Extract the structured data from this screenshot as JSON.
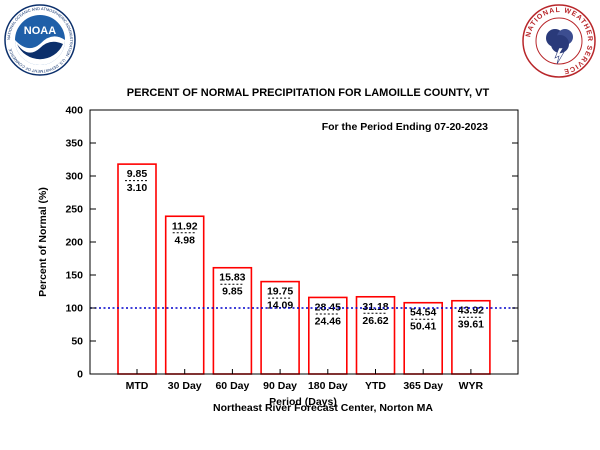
{
  "logos": {
    "noaa_center": "NOAA",
    "noaa_ring": "NATIONAL OCEANIC AND ATMOSPHERIC ADMINISTRATION · U.S. DEPARTMENT OF COMMERCE",
    "nws_ring": "NATIONAL WEATHER SERVICE"
  },
  "colors": {
    "bar_edge": "#ff0000",
    "reference_line": "#0000cc",
    "noaa_blue": "#1f5fa8",
    "noaa_dark": "#0b2f6b",
    "nws_red": "#b8262a"
  },
  "chart_data": {
    "type": "bar",
    "title": "PERCENT OF NORMAL PRECIPITATION FOR LAMOILLE COUNTY, VT",
    "subtitle": "For the Period Ending 07-20-2023",
    "xlabel": "Period (Days)",
    "ylabel": "Percent of Normal (%)",
    "footer": "Northeast River Forecast Center, Norton MA",
    "ylim": [
      0,
      400
    ],
    "yticks": [
      0,
      50,
      100,
      150,
      200,
      250,
      300,
      350,
      400
    ],
    "reference_value": 100,
    "categories": [
      "MTD",
      "30 Day",
      "60 Day",
      "90 Day",
      "180 Day",
      "YTD",
      "365 Day",
      "WYR"
    ],
    "values": [
      318,
      239,
      161,
      140,
      116,
      117,
      108,
      111
    ],
    "observed": [
      "9.85",
      "11.92",
      "15.83",
      "19.75",
      "28.45",
      "31.18",
      "54.54",
      "43.92"
    ],
    "normal": [
      "3.10",
      "4.98",
      "9.85",
      "14.09",
      "24.46",
      "26.62",
      "50.41",
      "39.61"
    ]
  }
}
